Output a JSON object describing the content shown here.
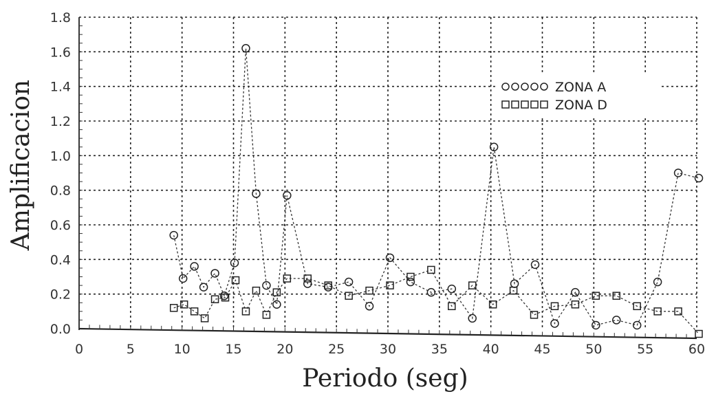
{
  "chart_data": {
    "type": "line",
    "title": "",
    "xlabel": "Periodo (seg)",
    "ylabel": "Amplificacion",
    "xlim": [
      0,
      60
    ],
    "ylim": [
      0,
      1.8
    ],
    "xticks": [
      "0",
      "5",
      "10",
      "15",
      "20",
      "25",
      "30",
      "35",
      "40",
      "45",
      "50",
      "55",
      "60"
    ],
    "yticks": [
      "0.0",
      "0.2",
      "0.4",
      "0.6",
      "0.8",
      "1.0",
      "1.2",
      "1.4",
      "1.6",
      "1.8"
    ],
    "grid": true,
    "legend_position": "top-right",
    "series": [
      {
        "name": "ZONA A",
        "marker": "circle",
        "x": [
          9.2,
          10.1,
          11.2,
          12.1,
          13.2,
          14.1,
          15.1,
          16.2,
          17.2,
          18.2,
          19.2,
          20.2,
          22.2,
          24.2,
          26.2,
          28.2,
          30.2,
          32.2,
          34.2,
          36.2,
          38.2,
          40.3,
          42.3,
          44.3,
          46.2,
          48.2,
          50.2,
          52.2,
          54.2,
          56.2,
          58.2,
          60.2
        ],
        "y": [
          0.54,
          0.29,
          0.36,
          0.24,
          0.32,
          0.19,
          0.38,
          1.62,
          0.78,
          0.25,
          0.14,
          0.77,
          0.26,
          0.24,
          0.27,
          0.13,
          0.41,
          0.27,
          0.21,
          0.23,
          0.06,
          1.05,
          0.26,
          0.37,
          0.03,
          0.21,
          0.02,
          0.05,
          0.02,
          0.27,
          0.9,
          0.87
        ]
      },
      {
        "name": "ZONA D",
        "marker": "square",
        "x": [
          9.2,
          10.2,
          11.2,
          12.2,
          13.2,
          14.2,
          15.2,
          16.2,
          17.2,
          18.2,
          19.2,
          20.2,
          22.2,
          24.2,
          26.2,
          28.2,
          30.2,
          32.2,
          34.2,
          36.2,
          38.2,
          40.2,
          42.2,
          44.2,
          46.2,
          48.2,
          50.2,
          52.2,
          54.2,
          56.2,
          58.2,
          60.2
        ],
        "y": [
          0.12,
          0.14,
          0.1,
          0.06,
          0.17,
          0.18,
          0.28,
          0.1,
          0.22,
          0.08,
          0.21,
          0.29,
          0.29,
          0.25,
          0.19,
          0.22,
          0.25,
          0.3,
          0.34,
          0.13,
          0.25,
          0.14,
          0.22,
          0.08,
          0.13,
          0.14,
          0.19,
          0.19,
          0.13,
          0.1,
          0.1,
          -0.03
        ]
      }
    ]
  }
}
